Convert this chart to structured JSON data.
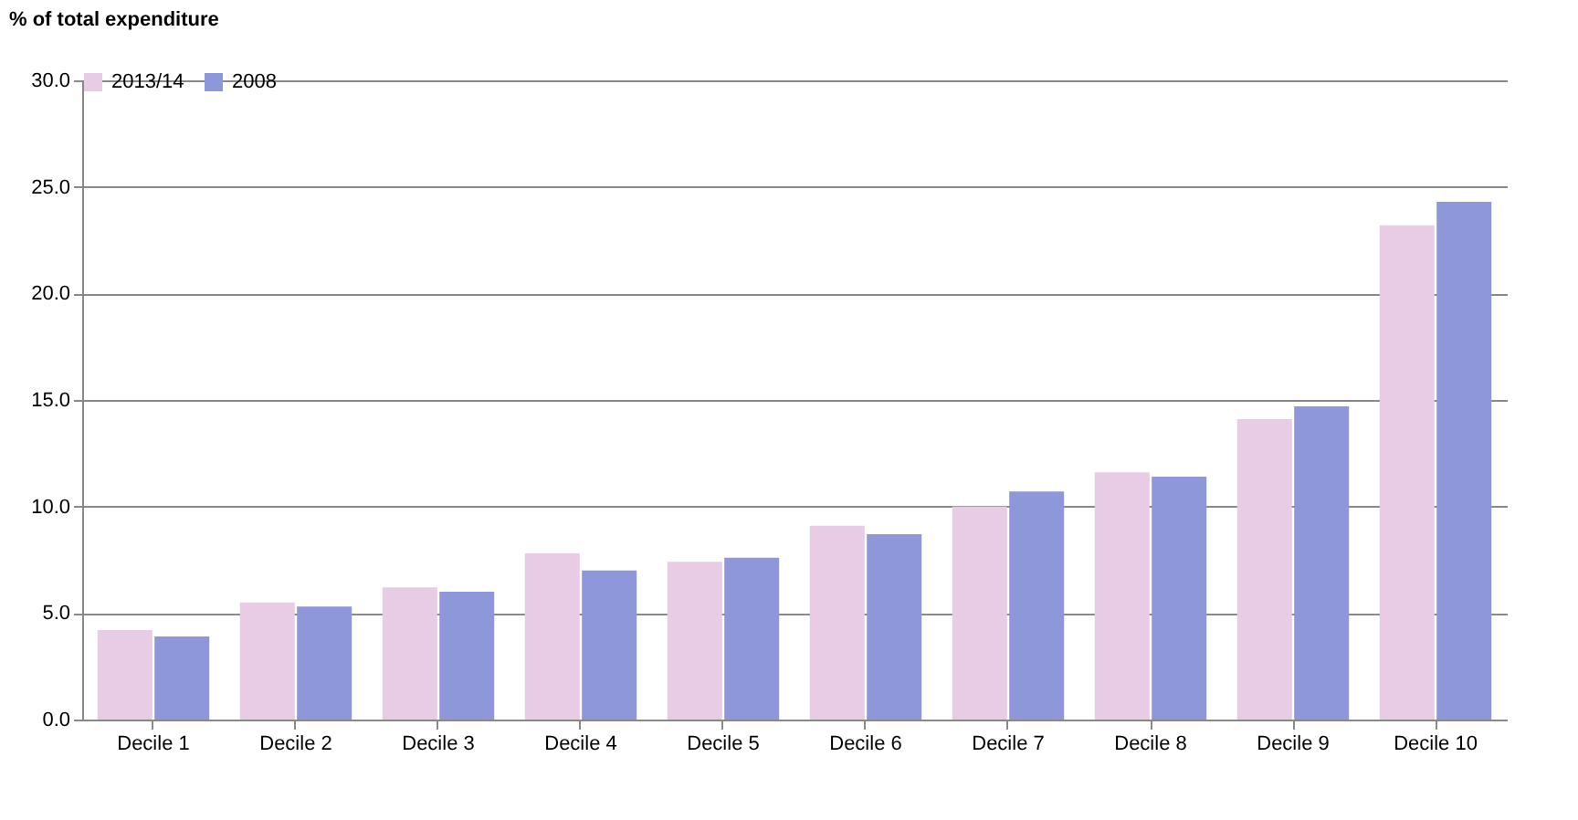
{
  "chart_data": {
    "type": "bar",
    "ylabel": "% of total expenditure",
    "categories": [
      "Decile 1",
      "Decile 2",
      "Decile 3",
      "Decile 4",
      "Decile 5",
      "Decile 6",
      "Decile 7",
      "Decile 8",
      "Decile 9",
      "Decile 10"
    ],
    "series": [
      {
        "name": "2013/14",
        "color": "#e8cce6",
        "values": [
          4.2,
          5.5,
          6.2,
          7.8,
          7.4,
          9.1,
          10.0,
          11.6,
          14.1,
          23.2
        ]
      },
      {
        "name": "2008",
        "color": "#8e97d9",
        "values": [
          3.9,
          5.3,
          6.0,
          7.0,
          7.6,
          8.7,
          10.7,
          11.4,
          14.7,
          24.3
        ]
      }
    ],
    "ylim": [
      0,
      30
    ],
    "yticks": [
      {
        "value": 0,
        "label": "0.0"
      },
      {
        "value": 5,
        "label": "5.0"
      },
      {
        "value": 10,
        "label": "10.0"
      },
      {
        "value": 15,
        "label": "15.0"
      },
      {
        "value": 20,
        "label": "20.0"
      },
      {
        "value": 25,
        "label": "25.0"
      },
      {
        "value": 30,
        "label": "30.0"
      }
    ],
    "grid": "y",
    "legend": "top"
  }
}
